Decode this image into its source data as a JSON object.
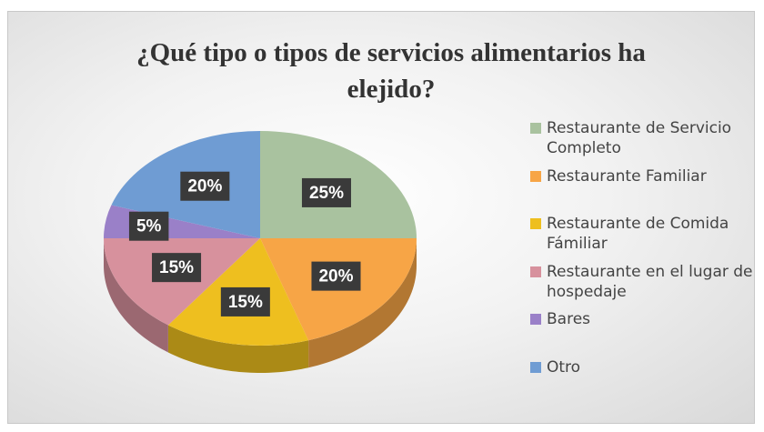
{
  "chart_data": {
    "type": "pie",
    "title": "¿Qué tipo o tipos de servicios alimentarios ha elejido?",
    "categories": [
      "Restaurante de Servicio Completo",
      "Restaurante Familiar",
      "Restaurante de Comida Fámiliar",
      "Restaurante en el lugar de hospedaje",
      "Bares",
      "Otro"
    ],
    "values": [
      25,
      20,
      15,
      15,
      5,
      20
    ],
    "value_labels": [
      "25%",
      "20%",
      "15%",
      "15%",
      "5%",
      "20%"
    ],
    "colors": [
      "#a9c29f",
      "#f7a546",
      "#eebf1f",
      "#d7919d",
      "#9a80c8",
      "#6f9cd3"
    ],
    "legend": "right"
  }
}
